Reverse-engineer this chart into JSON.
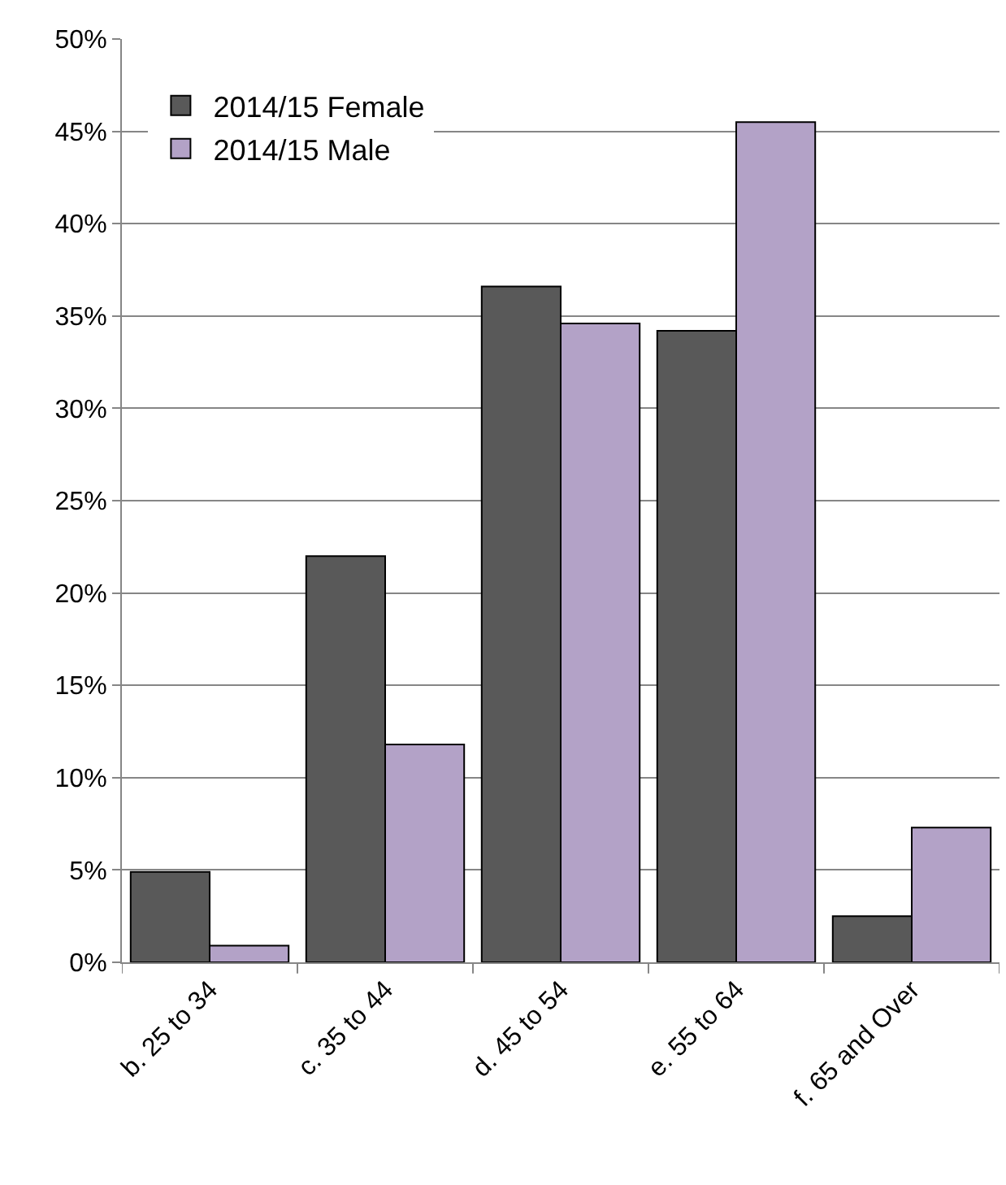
{
  "chart_data": {
    "type": "bar",
    "categories": [
      "b. 25 to 34",
      "c. 35 to 44",
      "d. 45 to 54",
      "e. 55 to 64",
      "f. 65 and Over"
    ],
    "series": [
      {
        "name": "2014/15 Female",
        "color": "#595959",
        "values": [
          4.9,
          22,
          36.6,
          34.2,
          2.5
        ]
      },
      {
        "name": "2014/15 Male",
        "color": "#b3a2c7",
        "values": [
          0.9,
          11.8,
          34.6,
          45.5,
          7.3
        ]
      }
    ],
    "ylim": [
      0,
      50
    ],
    "yticks": [
      {
        "value": 0,
        "label": "0%"
      },
      {
        "value": 5,
        "label": "5%"
      },
      {
        "value": 10,
        "label": "10%"
      },
      {
        "value": 15,
        "label": "15%"
      },
      {
        "value": 20,
        "label": "20%"
      },
      {
        "value": 25,
        "label": "25%"
      },
      {
        "value": 30,
        "label": "30%"
      },
      {
        "value": 35,
        "label": "35%"
      },
      {
        "value": 40,
        "label": "40%"
      },
      {
        "value": 45,
        "label": "45%"
      },
      {
        "value": 50,
        "label": "50%"
      }
    ],
    "grid": "y",
    "legend": "top left"
  }
}
